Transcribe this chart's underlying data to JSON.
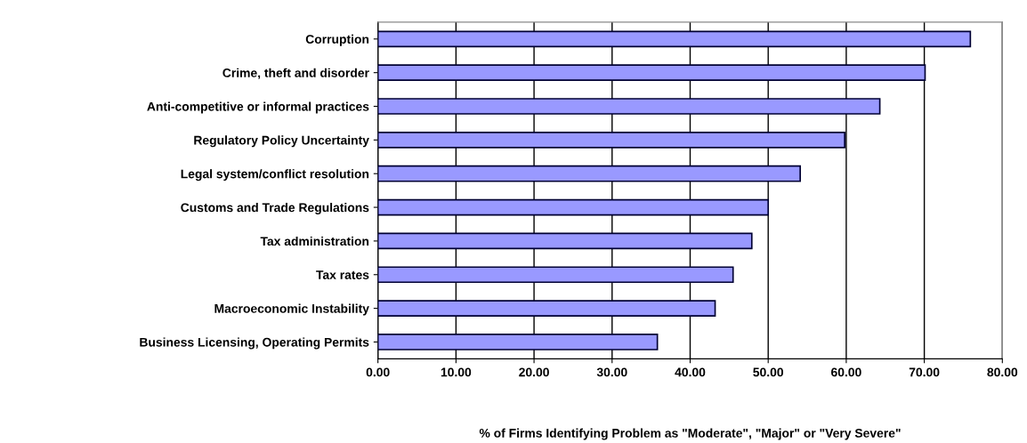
{
  "chart_data": {
    "type": "bar",
    "orientation": "horizontal",
    "categories": [
      "Corruption",
      "Crime, theft and disorder",
      "Anti-competitive or informal practices",
      "Regulatory Policy Uncertainty",
      "Legal system/conflict resolution",
      "Customs and Trade Regulations",
      "Tax administration",
      "Tax rates",
      "Macroeconomic Instability",
      "Business Licensing, Operating Permits"
    ],
    "values": [
      75.9,
      70.1,
      64.3,
      59.8,
      54.1,
      50.0,
      47.9,
      45.5,
      43.2,
      35.8
    ],
    "color": "#9999ff",
    "xlabel": "% of Firms Identifying Problem as \"Moderate\", \"Major\" or \"Very Severe\"",
    "xlim": [
      0,
      80
    ],
    "xticks": [
      {
        "value": 0,
        "label": "0.00"
      },
      {
        "value": 10,
        "label": "10.00"
      },
      {
        "value": 20,
        "label": "20.00"
      },
      {
        "value": 30,
        "label": "30.00"
      },
      {
        "value": 40,
        "label": "40.00"
      },
      {
        "value": 50,
        "label": "50.00"
      },
      {
        "value": 60,
        "label": "60.00"
      },
      {
        "value": 70,
        "label": "70.00"
      },
      {
        "value": 80,
        "label": "80.00"
      }
    ],
    "grid": "x"
  }
}
